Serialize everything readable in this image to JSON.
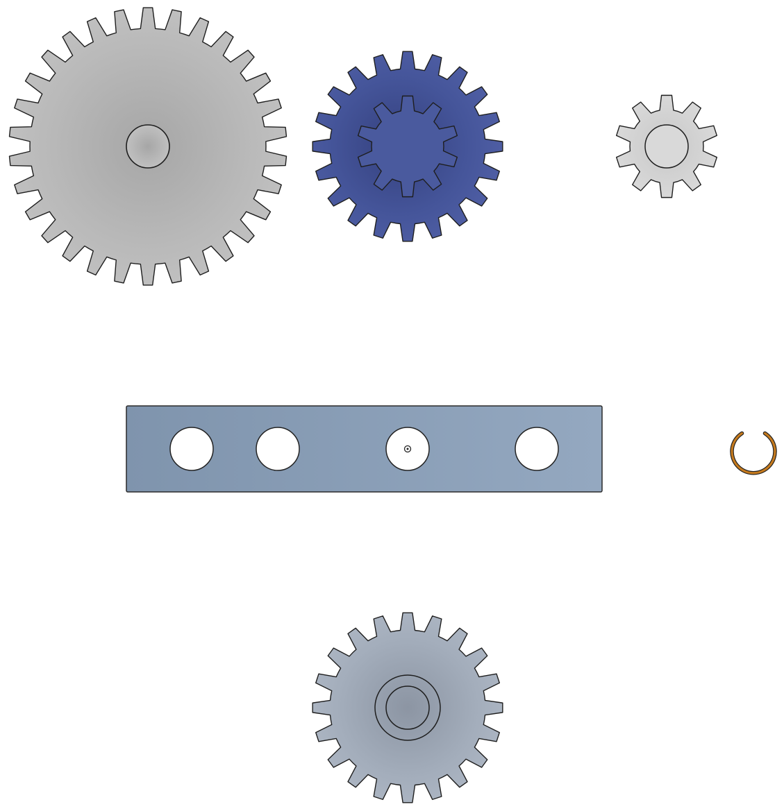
{
  "canvas": {
    "background": "#ffffff"
  },
  "parts": {
    "large_gear": {
      "teeth": 30,
      "fill": "#b9b9b9",
      "shade": "#a8a8a8"
    },
    "compound_gear_outer": {
      "teeth": 20,
      "fill": "#4a5a9e",
      "shade": "#3a478a"
    },
    "compound_gear_inner": {
      "teeth": 10,
      "fill": "#4a5a9e",
      "shade": "#3e4c90"
    },
    "small_gear": {
      "teeth": 10,
      "fill": "#d2d2d2",
      "shade": "#c4c4c4"
    },
    "bottom_gear": {
      "teeth": 20,
      "fill": "#a3adbb",
      "shade": "#939daa"
    },
    "bar": {
      "fill": "#8a9fb8",
      "holes": 4
    },
    "retaining_ring": {
      "color": "#c57a1e"
    }
  }
}
